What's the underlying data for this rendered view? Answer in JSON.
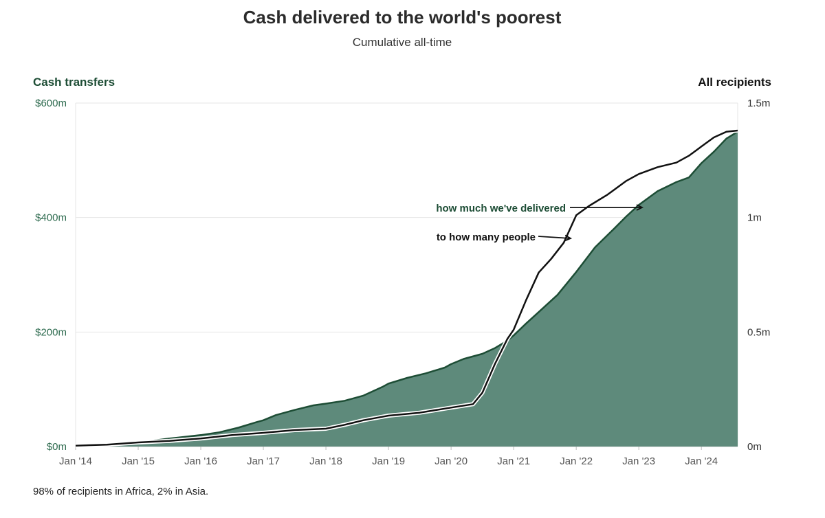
{
  "title": "Cash delivered to the world's poorest",
  "subtitle": "Cumulative all-time",
  "footnote": "98% of recipients in Africa, 2% in Asia.",
  "colors": {
    "area_fill": "#5e8a7b",
    "area_line": "#1d4d35",
    "recipients_line": "#111111",
    "left_axis_text": "#2e6b4f"
  },
  "chart_data": {
    "type": "area",
    "left_axis": {
      "title": "Cash transfers",
      "range": [
        0,
        600
      ],
      "unit": "$m",
      "tick_values": [
        0,
        200,
        400,
        600
      ],
      "tick_labels": [
        "$0m",
        "$200m",
        "$400m",
        "$600m"
      ]
    },
    "right_axis": {
      "title": "All recipients",
      "range": [
        0,
        1.5
      ],
      "unit": "millions",
      "tick_values": [
        0,
        0.5,
        1,
        1.5
      ],
      "tick_labels": [
        "0m",
        "0.5m",
        "1m",
        "1.5m"
      ]
    },
    "x_axis": {
      "range": [
        2014.0,
        2024.58
      ],
      "tick_values": [
        2014,
        2015,
        2016,
        2017,
        2018,
        2019,
        2020,
        2021,
        2022,
        2023,
        2024
      ],
      "tick_labels": [
        "Jan '14",
        "Jan '15",
        "Jan '16",
        "Jan '17",
        "Jan '18",
        "Jan '19",
        "Jan '20",
        "Jan '21",
        "Jan '22",
        "Jan '23",
        "Jan '24"
      ]
    },
    "grid": true,
    "series": [
      {
        "name": "Cash transfers",
        "axis": "left",
        "style": "area",
        "points": [
          [
            2014.0,
            2
          ],
          [
            2014.4,
            3
          ],
          [
            2014.8,
            5
          ],
          [
            2015.0,
            7
          ],
          [
            2015.5,
            14
          ],
          [
            2016.0,
            20
          ],
          [
            2016.3,
            25
          ],
          [
            2016.6,
            33
          ],
          [
            2016.9,
            43
          ],
          [
            2017.0,
            46
          ],
          [
            2017.2,
            55
          ],
          [
            2017.5,
            64
          ],
          [
            2017.8,
            72
          ],
          [
            2018.0,
            75
          ],
          [
            2018.3,
            80
          ],
          [
            2018.6,
            89
          ],
          [
            2018.9,
            104
          ],
          [
            2019.0,
            110
          ],
          [
            2019.3,
            120
          ],
          [
            2019.6,
            128
          ],
          [
            2019.9,
            138
          ],
          [
            2020.0,
            144
          ],
          [
            2020.2,
            153
          ],
          [
            2020.5,
            162
          ],
          [
            2020.7,
            172
          ],
          [
            2020.9,
            185
          ],
          [
            2021.0,
            194
          ],
          [
            2021.2,
            215
          ],
          [
            2021.4,
            235
          ],
          [
            2021.7,
            265
          ],
          [
            2022.0,
            305
          ],
          [
            2022.3,
            348
          ],
          [
            2022.6,
            380
          ],
          [
            2022.8,
            402
          ],
          [
            2023.0,
            422
          ],
          [
            2023.3,
            446
          ],
          [
            2023.6,
            462
          ],
          [
            2023.8,
            470
          ],
          [
            2024.0,
            495
          ],
          [
            2024.2,
            515
          ],
          [
            2024.4,
            538
          ],
          [
            2024.58,
            550
          ]
        ]
      },
      {
        "name": "Recipients",
        "axis": "right",
        "style": "line",
        "points": [
          [
            2014.0,
            0.004
          ],
          [
            2014.5,
            0.008
          ],
          [
            2015.0,
            0.018
          ],
          [
            2015.5,
            0.025
          ],
          [
            2016.0,
            0.035
          ],
          [
            2016.5,
            0.05
          ],
          [
            2017.0,
            0.06
          ],
          [
            2017.5,
            0.072
          ],
          [
            2018.0,
            0.078
          ],
          [
            2018.3,
            0.095
          ],
          [
            2018.6,
            0.115
          ],
          [
            2018.9,
            0.13
          ],
          [
            2019.0,
            0.135
          ],
          [
            2019.5,
            0.148
          ],
          [
            2020.0,
            0.17
          ],
          [
            2020.35,
            0.185
          ],
          [
            2020.5,
            0.235
          ],
          [
            2020.7,
            0.36
          ],
          [
            2020.9,
            0.47
          ],
          [
            2021.0,
            0.51
          ],
          [
            2021.2,
            0.64
          ],
          [
            2021.4,
            0.76
          ],
          [
            2021.6,
            0.82
          ],
          [
            2021.8,
            0.89
          ],
          [
            2022.0,
            1.01
          ],
          [
            2022.2,
            1.05
          ],
          [
            2022.5,
            1.1
          ],
          [
            2022.8,
            1.16
          ],
          [
            2023.0,
            1.19
          ],
          [
            2023.3,
            1.22
          ],
          [
            2023.6,
            1.24
          ],
          [
            2023.8,
            1.27
          ],
          [
            2024.0,
            1.31
          ],
          [
            2024.2,
            1.35
          ],
          [
            2024.4,
            1.375
          ],
          [
            2024.58,
            1.38
          ]
        ]
      }
    ],
    "annotations": [
      {
        "text": "how much we've delivered",
        "color": "#1d4d35",
        "target_series": "Cash transfers"
      },
      {
        "text": "to how many people",
        "color": "#111111",
        "target_series": "Recipients"
      }
    ]
  }
}
